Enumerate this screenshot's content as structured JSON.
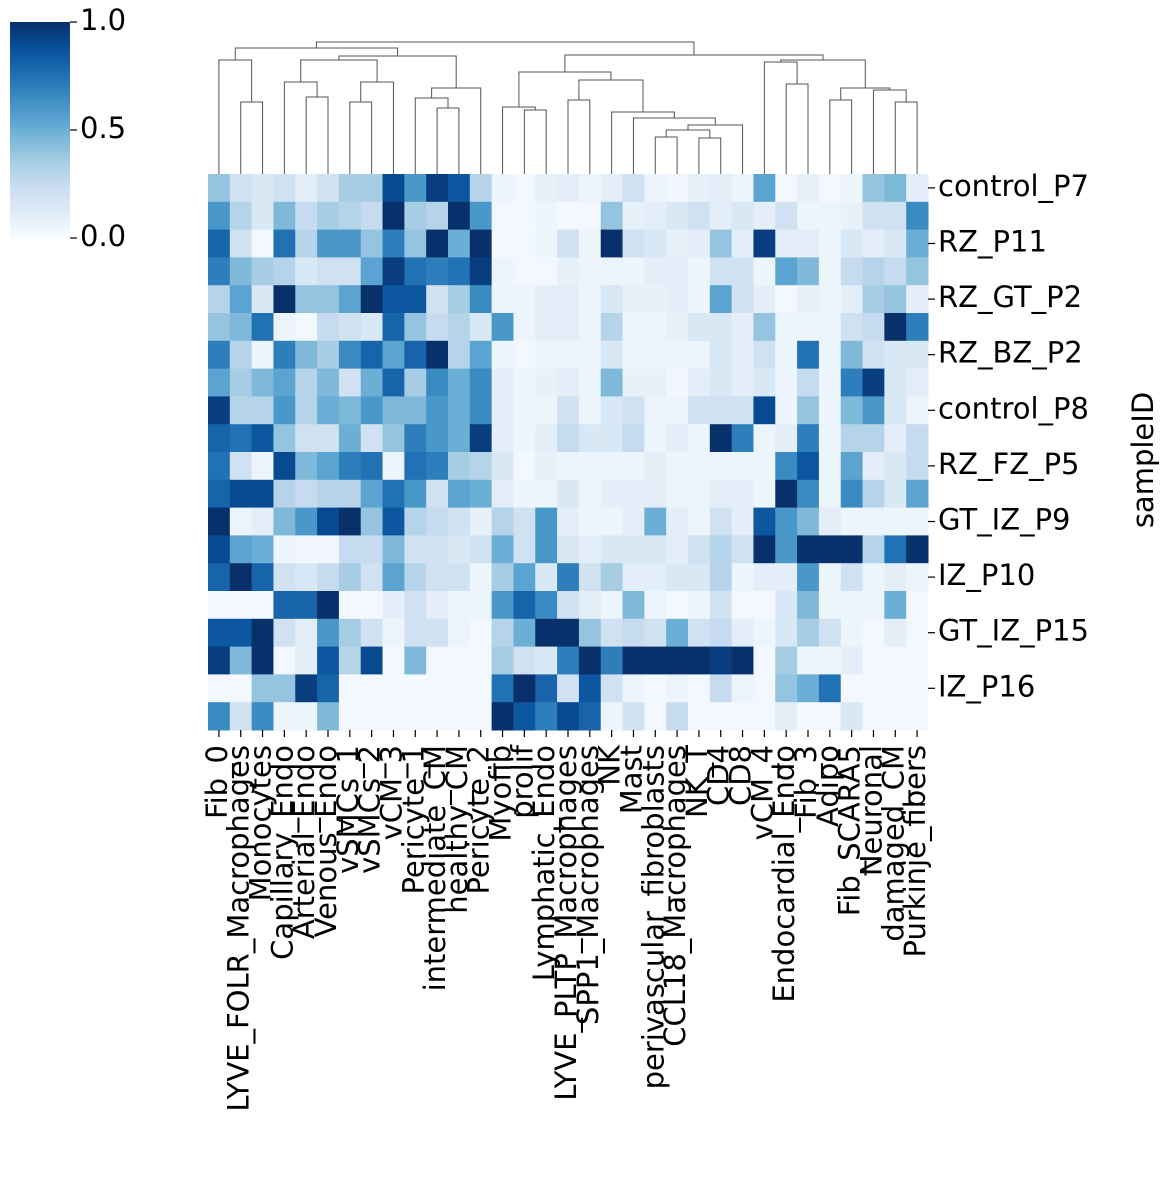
{
  "chart_data": {
    "type": "heatmap",
    "x_categories": [
      "Fib_0",
      "LYVE_FOLR_Macrophages",
      "Monocytes",
      "Capillary_Endo",
      "Arterial_Endo",
      "Venous_Endo",
      "vSMCs_1",
      "vSMCs_2",
      "vCM_3",
      "Pericyte_1",
      "intermediate_CM",
      "healthy_CM",
      "Pericyte_2",
      "Myofib",
      "prolif",
      "Lymphatic_Endo",
      "LYVE_PLTP_Macrophages",
      "SPP1_Macrophages",
      "NK",
      "Mast",
      "perivascular_fibroblasts",
      "CCL18_Macrophages",
      "NK_T",
      "CD4",
      "CD8",
      "vCM_4",
      "Endocardial_Endo",
      "Fib_3",
      "Adipo",
      "Fib_SCARA5",
      "Neuronal",
      "damaged_CM",
      "Purkinje_fibers"
    ],
    "y_categories": [
      "control_P7",
      null,
      "RZ_P11",
      null,
      "RZ_GT_P2",
      null,
      "RZ_BZ_P2",
      null,
      "control_P8",
      null,
      "RZ_FZ_P5",
      null,
      "GT_IZ_P9",
      null,
      "IZ_P10",
      null,
      "GT_IZ_P15",
      null,
      "IZ_P16",
      null
    ],
    "ylabel": "sampleID",
    "values": [
      [
        0.4,
        0.2,
        0.15,
        0.2,
        0.1,
        0.2,
        0.35,
        0.35,
        0.9,
        0.6,
        0.95,
        0.85,
        0.3,
        0.05,
        0.02,
        0.08,
        0.1,
        0.05,
        0.1,
        0.2,
        0.05,
        0.03,
        0.08,
        0.1,
        0.05,
        0.55,
        0.02,
        0.08,
        0.02,
        0.05,
        0.4,
        0.45,
        0.1
      ],
      [
        0.6,
        0.3,
        0.15,
        0.45,
        0.25,
        0.35,
        0.3,
        0.25,
        1.0,
        0.35,
        0.3,
        1.0,
        0.6,
        0.02,
        0.02,
        0.05,
        0.02,
        0.02,
        0.4,
        0.08,
        0.1,
        0.15,
        0.2,
        0.1,
        0.15,
        0.1,
        0.2,
        0.05,
        0.05,
        0.08,
        0.2,
        0.2,
        0.65
      ],
      [
        0.8,
        0.2,
        0.02,
        0.75,
        0.3,
        0.6,
        0.6,
        0.4,
        0.7,
        0.4,
        1.0,
        0.5,
        1.0,
        0.02,
        0.02,
        0.05,
        0.2,
        0.05,
        1.0,
        0.2,
        0.15,
        0.08,
        0.1,
        0.4,
        0.1,
        0.95,
        0.1,
        0.1,
        0.05,
        0.15,
        0.1,
        0.15,
        0.5
      ],
      [
        0.7,
        0.45,
        0.35,
        0.3,
        0.15,
        0.2,
        0.2,
        0.55,
        0.95,
        0.75,
        0.7,
        0.75,
        0.95,
        0.05,
        0.02,
        0.02,
        0.08,
        0.05,
        0.05,
        0.05,
        0.1,
        0.1,
        0.05,
        0.2,
        0.2,
        0.05,
        0.55,
        0.45,
        0.05,
        0.25,
        0.3,
        0.25,
        0.4
      ],
      [
        0.3,
        0.55,
        0.15,
        1.0,
        0.4,
        0.4,
        0.55,
        1.0,
        0.85,
        0.85,
        0.2,
        0.35,
        0.65,
        0.05,
        0.05,
        0.1,
        0.1,
        0.05,
        0.15,
        0.08,
        0.08,
        0.1,
        0.05,
        0.55,
        0.2,
        0.1,
        0.02,
        0.08,
        0.05,
        0.1,
        0.35,
        0.4,
        0.1
      ],
      [
        0.4,
        0.45,
        0.75,
        0.05,
        0.02,
        0.25,
        0.2,
        0.15,
        0.8,
        0.4,
        0.25,
        0.3,
        0.15,
        0.6,
        0.05,
        0.1,
        0.1,
        0.05,
        0.3,
        0.05,
        0.05,
        0.08,
        0.15,
        0.15,
        0.1,
        0.4,
        0.05,
        0.05,
        0.05,
        0.2,
        0.25,
        1.0,
        0.7
      ],
      [
        0.7,
        0.3,
        0.05,
        0.7,
        0.45,
        0.35,
        0.65,
        0.8,
        0.55,
        0.8,
        1.0,
        0.3,
        0.55,
        0.05,
        0.02,
        0.05,
        0.05,
        0.05,
        0.15,
        0.05,
        0.05,
        0.05,
        0.05,
        0.15,
        0.1,
        0.2,
        0.05,
        0.75,
        0.05,
        0.45,
        0.2,
        0.15,
        0.15
      ],
      [
        0.55,
        0.35,
        0.45,
        0.55,
        0.3,
        0.45,
        0.2,
        0.5,
        0.8,
        0.35,
        0.65,
        0.5,
        0.65,
        0.1,
        0.05,
        0.08,
        0.1,
        0.05,
        0.45,
        0.08,
        0.08,
        0.03,
        0.1,
        0.15,
        0.1,
        0.15,
        0.05,
        0.25,
        0.05,
        0.7,
        0.95,
        0.15,
        0.1
      ],
      [
        0.95,
        0.3,
        0.3,
        0.6,
        0.3,
        0.5,
        0.45,
        0.6,
        0.45,
        0.45,
        0.6,
        0.5,
        0.65,
        0.1,
        0.05,
        0.05,
        0.2,
        0.05,
        0.15,
        0.2,
        0.05,
        0.05,
        0.2,
        0.2,
        0.2,
        0.9,
        0.05,
        0.4,
        0.05,
        0.45,
        0.6,
        0.15,
        0.05
      ],
      [
        0.8,
        0.75,
        0.85,
        0.4,
        0.2,
        0.2,
        0.5,
        0.2,
        0.4,
        0.7,
        0.6,
        0.5,
        0.95,
        0.1,
        0.05,
        0.1,
        0.25,
        0.15,
        0.15,
        0.25,
        0.05,
        0.1,
        0.05,
        1.0,
        0.7,
        0.05,
        0.1,
        0.7,
        0.05,
        0.3,
        0.3,
        0.1,
        0.25
      ],
      [
        0.75,
        0.2,
        0.05,
        0.9,
        0.45,
        0.55,
        0.7,
        0.75,
        0.05,
        0.75,
        0.7,
        0.35,
        0.3,
        0.15,
        0.02,
        0.08,
        0.05,
        0.05,
        0.05,
        0.05,
        0.1,
        0.05,
        0.05,
        0.05,
        0.05,
        0.05,
        0.65,
        0.85,
        0.05,
        0.55,
        0.1,
        0.15,
        0.25
      ],
      [
        0.8,
        0.9,
        0.9,
        0.3,
        0.25,
        0.3,
        0.3,
        0.55,
        0.75,
        0.6,
        0.2,
        0.55,
        0.5,
        0.1,
        0.05,
        0.05,
        0.15,
        0.05,
        0.1,
        0.1,
        0.1,
        0.05,
        0.05,
        0.1,
        0.1,
        0.05,
        1.0,
        0.65,
        0.05,
        0.65,
        0.3,
        0.15,
        0.55
      ],
      [
        1.0,
        0.05,
        0.1,
        0.45,
        0.6,
        0.9,
        1.0,
        0.4,
        0.85,
        0.3,
        0.25,
        0.2,
        0.08,
        0.3,
        0.2,
        0.6,
        0.1,
        0.05,
        0.05,
        0.1,
        0.5,
        0.1,
        0.05,
        0.2,
        0.1,
        0.85,
        0.6,
        0.45,
        0.1,
        0.05,
        0.05,
        0.05,
        0.05
      ],
      [
        0.9,
        0.55,
        0.5,
        0.05,
        0.03,
        0.03,
        0.25,
        0.25,
        0.45,
        0.2,
        0.2,
        0.15,
        0.2,
        0.5,
        0.2,
        0.6,
        0.15,
        0.1,
        0.15,
        0.15,
        0.15,
        0.1,
        0.2,
        0.3,
        0.2,
        1.0,
        0.6,
        1.0,
        1.0,
        1.0,
        0.3,
        0.75,
        1.0
      ],
      [
        0.8,
        1.0,
        0.8,
        0.2,
        0.15,
        0.25,
        0.35,
        0.2,
        0.55,
        0.3,
        0.2,
        0.2,
        0.05,
        0.35,
        0.55,
        0.15,
        0.7,
        0.2,
        0.35,
        0.1,
        0.1,
        0.15,
        0.15,
        0.3,
        0.05,
        0.1,
        0.1,
        0.6,
        0.05,
        0.2,
        0.05,
        0.1,
        0.05
      ],
      [
        0.02,
        0.02,
        0.02,
        0.8,
        0.8,
        1.0,
        0.02,
        0.02,
        0.1,
        0.2,
        0.1,
        0.05,
        0.05,
        0.6,
        0.8,
        0.65,
        0.2,
        0.1,
        0.05,
        0.45,
        0.05,
        0.02,
        0.05,
        0.2,
        0.02,
        0.02,
        0.15,
        0.45,
        0.05,
        0.05,
        0.05,
        0.5,
        0.02
      ],
      [
        0.85,
        0.85,
        1.0,
        0.2,
        0.1,
        0.6,
        0.35,
        0.2,
        0.05,
        0.2,
        0.2,
        0.05,
        0.02,
        0.3,
        0.5,
        1.0,
        1.0,
        0.4,
        0.2,
        0.25,
        0.2,
        0.5,
        0.2,
        0.25,
        0.1,
        0.05,
        0.15,
        0.35,
        0.2,
        0.05,
        0.02,
        0.1,
        0.02
      ],
      [
        0.95,
        0.45,
        1.0,
        0.02,
        0.1,
        0.85,
        0.3,
        0.9,
        0.02,
        0.45,
        0.02,
        0.02,
        0.02,
        0.35,
        0.2,
        0.15,
        0.7,
        1.0,
        0.7,
        1.0,
        1.0,
        1.0,
        1.0,
        0.95,
        1.0,
        0.02,
        0.35,
        0.05,
        0.05,
        0.1,
        0.02,
        0.02,
        0.02
      ],
      [
        0.02,
        0.02,
        0.4,
        0.4,
        0.95,
        0.8,
        0.02,
        0.02,
        0.02,
        0.02,
        0.02,
        0.02,
        0.02,
        0.75,
        1.0,
        0.8,
        0.2,
        0.85,
        0.2,
        0.05,
        0.02,
        0.05,
        0.02,
        0.25,
        0.05,
        0.02,
        0.4,
        0.5,
        0.75,
        0.02,
        0.02,
        0.02,
        0.02
      ],
      [
        0.65,
        0.2,
        0.65,
        0.05,
        0.05,
        0.45,
        0.02,
        0.02,
        0.02,
        0.02,
        0.02,
        0.02,
        0.02,
        1.0,
        0.85,
        0.7,
        0.9,
        0.8,
        0.05,
        0.2,
        0.02,
        0.25,
        0.02,
        0.02,
        0.02,
        0.02,
        0.1,
        0.02,
        0.02,
        0.15,
        0.02,
        0.02,
        0.02
      ]
    ],
    "colormap": [
      "#f7fbff",
      "#deebf7",
      "#c6dbef",
      "#9ecae1",
      "#6baed6",
      "#4292c6",
      "#2171b5",
      "#08519c",
      "#08306b"
    ],
    "colorbar": {
      "lim": [
        0,
        1
      ],
      "ticks": [
        {
          "value": 0,
          "label": "0.0"
        },
        0.5,
        {
          "value": 1,
          "label": "1.0"
        }
      ]
    }
  }
}
